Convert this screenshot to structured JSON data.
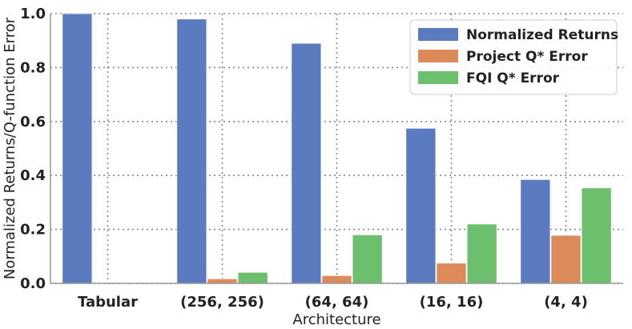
{
  "chart_data": {
    "type": "bar",
    "title": "",
    "xlabel": "Architecture",
    "ylabel": "Normalized Returns/Q-function Error",
    "ylim": [
      0,
      1.0
    ],
    "yticks": [
      "0.0",
      "0.2",
      "0.4",
      "0.6",
      "0.8",
      "1.0"
    ],
    "categories": [
      "Tabular",
      "(256, 256)",
      "(64, 64)",
      "(16, 16)",
      "(4, 4)"
    ],
    "grid": true,
    "legend_position": "top-right",
    "series": [
      {
        "name": "Normalized Returns",
        "color": "#5a7bc0",
        "values": [
          1.0,
          0.98,
          0.89,
          0.575,
          0.385
        ]
      },
      {
        "name": "Project Q* Error",
        "color": "#dd8a5a",
        "values": [
          0.0,
          0.017,
          0.029,
          0.075,
          0.178
        ]
      },
      {
        "name": "FQI Q* Error",
        "color": "#6cbf6c",
        "values": [
          0.0,
          0.041,
          0.18,
          0.22,
          0.354
        ]
      }
    ]
  }
}
